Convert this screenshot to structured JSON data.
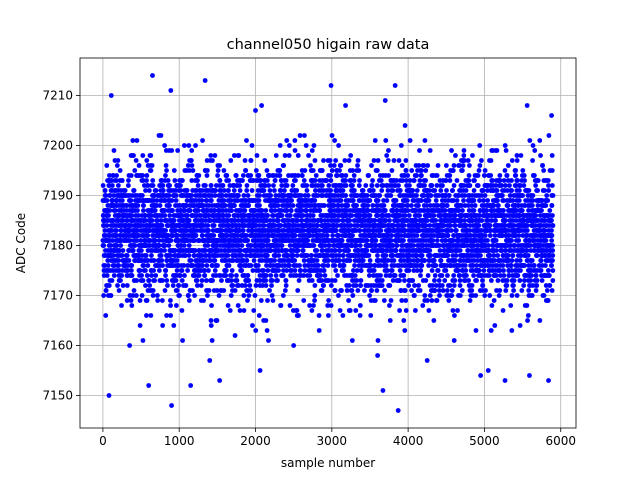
{
  "chart_data": {
    "type": "scatter",
    "title": "channel050 higain raw data",
    "xlabel": "sample number",
    "ylabel": "ADC Code",
    "xlim": [
      -300,
      6200
    ],
    "ylim": [
      7143.5,
      7217.5
    ],
    "xticks": [
      0,
      1000,
      2000,
      3000,
      4000,
      5000,
      6000
    ],
    "yticks": [
      7150,
      7160,
      7170,
      7180,
      7190,
      7200,
      7210
    ],
    "grid": true,
    "marker_color": "#0000ff",
    "n_samples": 5900,
    "y_center": 7183,
    "y_spread": 6.5,
    "outliers": [
      {
        "x": 80,
        "y": 7150
      },
      {
        "x": 110,
        "y": 7210
      },
      {
        "x": 650,
        "y": 7214
      },
      {
        "x": 890,
        "y": 7211
      },
      {
        "x": 900,
        "y": 7148
      },
      {
        "x": 1340,
        "y": 7213
      },
      {
        "x": 1150,
        "y": 7152
      },
      {
        "x": 1530,
        "y": 7153
      },
      {
        "x": 2000,
        "y": 7207
      },
      {
        "x": 2060,
        "y": 7155
      },
      {
        "x": 2080,
        "y": 7208
      },
      {
        "x": 2990,
        "y": 7212
      },
      {
        "x": 3180,
        "y": 7208
      },
      {
        "x": 3670,
        "y": 7151
      },
      {
        "x": 3700,
        "y": 7209
      },
      {
        "x": 3830,
        "y": 7212
      },
      {
        "x": 3870,
        "y": 7147
      },
      {
        "x": 3960,
        "y": 7204
      },
      {
        "x": 4950,
        "y": 7154
      },
      {
        "x": 5270,
        "y": 7153
      },
      {
        "x": 5590,
        "y": 7154
      },
      {
        "x": 5840,
        "y": 7153
      },
      {
        "x": 5560,
        "y": 7208
      },
      {
        "x": 5880,
        "y": 7206
      },
      {
        "x": 600,
        "y": 7152
      },
      {
        "x": 1400,
        "y": 7157
      },
      {
        "x": 2500,
        "y": 7160
      },
      {
        "x": 3600,
        "y": 7158
      },
      {
        "x": 4250,
        "y": 7157
      },
      {
        "x": 5050,
        "y": 7155
      }
    ]
  }
}
